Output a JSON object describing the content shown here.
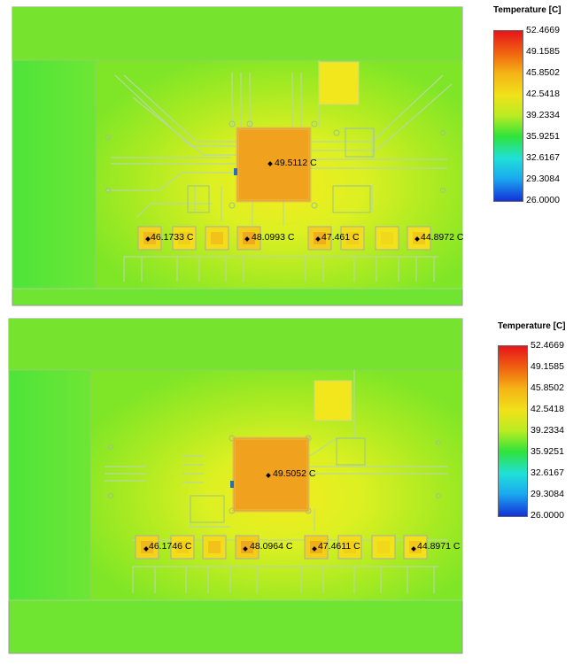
{
  "legend": {
    "title": "Temperature [C]",
    "ticks": [
      "52.4669",
      "49.1585",
      "45.8502",
      "42.5418",
      "39.2334",
      "35.9251",
      "32.6167",
      "29.3084",
      "26.0000"
    ],
    "colors": [
      "#e8141a",
      "#f06a10",
      "#f5b416",
      "#f0e21a",
      "#b8ec22",
      "#2fe33b",
      "#20e0d8",
      "#1aa8f0",
      "#1431d8"
    ]
  },
  "plots": [
    {
      "chip_label": "49.5112 C",
      "probes": [
        "46.1733 C",
        "48.0993 C",
        "47.461 C",
        "44.8972 C"
      ]
    },
    {
      "chip_label": "49.5052 C",
      "probes": [
        "46.1746 C",
        "48.0964 C",
        "47.4611 C",
        "44.8971 C"
      ]
    }
  ]
}
